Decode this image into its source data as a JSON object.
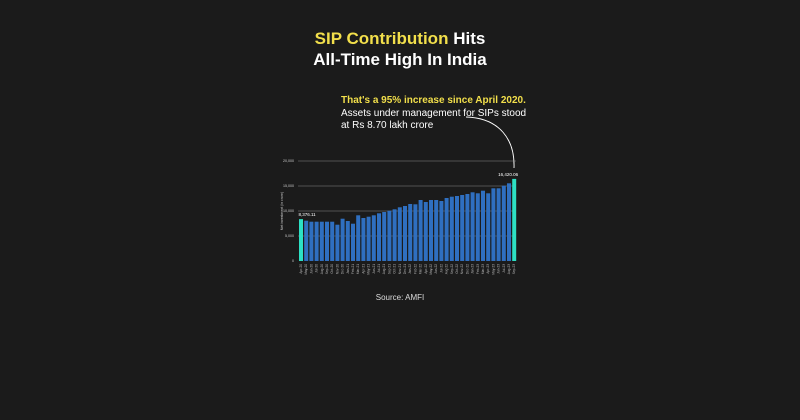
{
  "title": {
    "highlight": "SIP Contribution",
    "rest_line1": " Hits",
    "line2": "All-Time High In India"
  },
  "annotation": {
    "highlight": "That's a 95% increase since April 2020.",
    "rest": " Assets under management for SIPs stood at Rs 8.70 lakh crore"
  },
  "source": "Source: AMFI",
  "colors": {
    "background": "#1b1b1b",
    "bar": "#2f6fc0",
    "highlight_bar": "#2de0c4",
    "title_highlight": "#f2df4b"
  },
  "chart_data": {
    "type": "bar",
    "ylabel": "Net investment (in crore)",
    "ylim": [
      0,
      20000
    ],
    "yticks": [
      "0",
      "5,000",
      "10,000",
      "15,000",
      "20,000"
    ],
    "grid": true,
    "categories": [
      "Apr-20",
      "May-20",
      "Jun-20",
      "Jul-20",
      "Aug-20",
      "Sep-20",
      "Oct-20",
      "Nov-20",
      "Dec-20",
      "Jan-21",
      "Feb-21",
      "Mar-21",
      "Apr-21",
      "May-21",
      "Jun-21",
      "Jul-21",
      "Aug-21",
      "Sep-21",
      "Oct-21",
      "Nov-21",
      "Dec-21",
      "Jan-22",
      "Feb-22",
      "Mar-22",
      "Apr-22",
      "May-22",
      "Jun-22",
      "Jul-22",
      "Aug-22",
      "Sep-22",
      "Oct-22",
      "Nov-22",
      "Dec-22",
      "Jan-23",
      "Feb-23",
      "Mar-23",
      "Apr-23",
      "May-23",
      "Jun-23",
      "Jul-23",
      "Aug-23",
      "Sep-23"
    ],
    "values": [
      8376.11,
      8060,
      7860,
      7860,
      7860,
      7860,
      7860,
      7260,
      8460,
      8000,
      7460,
      9140,
      8600,
      8860,
      9140,
      9540,
      9800,
      10060,
      10340,
      10740,
      11000,
      11400,
      11340,
      12200,
      11800,
      12200,
      12200,
      12000,
      12600,
      12860,
      13000,
      13200,
      13400,
      13740,
      13540,
      14060,
      13540,
      14540,
      14540,
      15060,
      15540,
      16420.06
    ],
    "data_labels": {
      "first": "8,376.11",
      "last": "16,420.06"
    }
  }
}
